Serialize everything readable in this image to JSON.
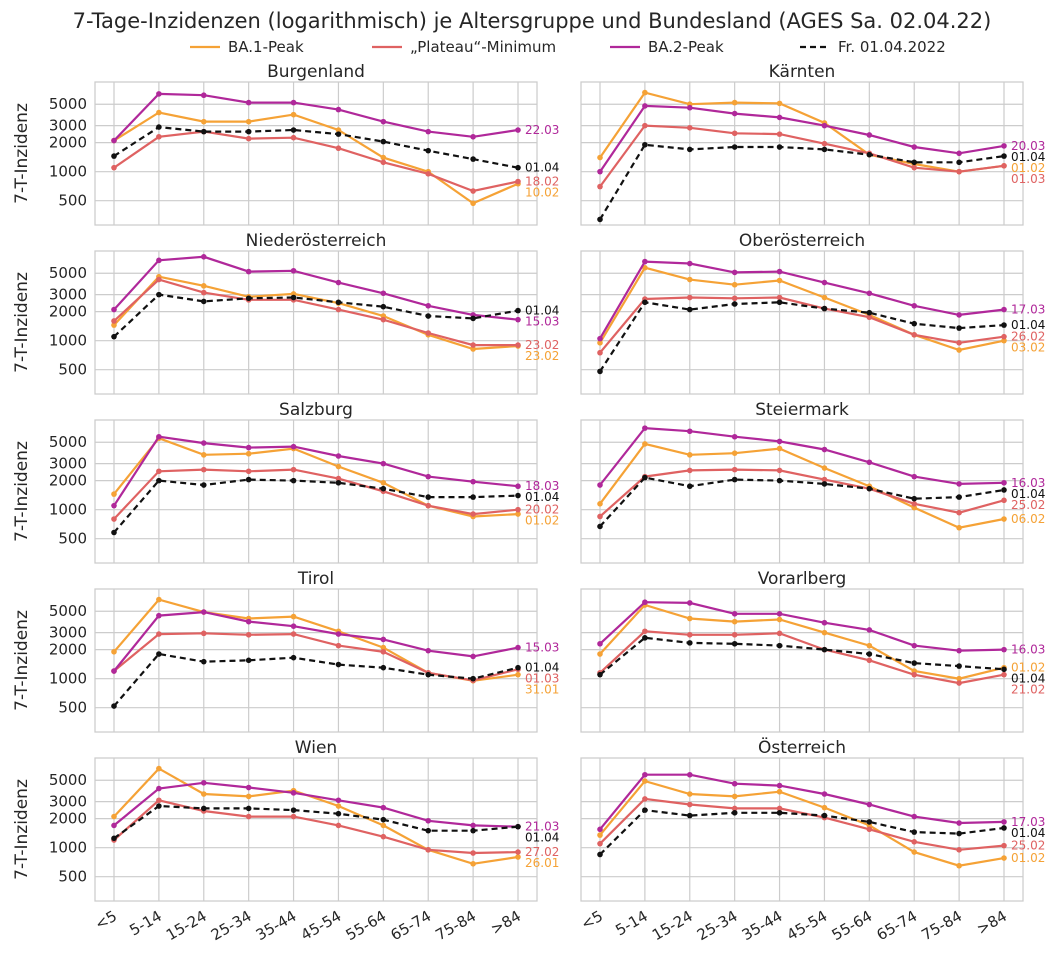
{
  "chart_data": {
    "type": "line",
    "title": "7-Tage-Inzidenzen (logarithmisch) je Altersgruppe und Bundesland (AGES Sa. 02.04.22)",
    "ylabel": "7-T-Inzidenz",
    "yscale": "log",
    "ylim": [
      280,
      8500
    ],
    "yticks": [
      500,
      1000,
      2000,
      3000,
      5000
    ],
    "categories": [
      "<5",
      "5-14",
      "15-24",
      "25-34",
      "35-44",
      "45-54",
      "55-64",
      "65-74",
      "75-84",
      ">84"
    ],
    "legend_position": "top-center",
    "grid": true,
    "legend": [
      {
        "key": "ba1",
        "label": "BA.1-Peak",
        "color": "#f5a236",
        "style": "solid"
      },
      {
        "key": "plateau",
        "label": "„Plateau“-Minimum",
        "color": "#df6262",
        "style": "solid"
      },
      {
        "key": "ba2",
        "label": "BA.2-Peak",
        "color": "#b0289a",
        "style": "solid"
      },
      {
        "key": "current",
        "label": "Fr. 01.04.2022",
        "color": "#111111",
        "style": "dashed"
      }
    ],
    "panels": [
      {
        "title": "Burgenland",
        "series": {
          "ba1": {
            "values": [
              2100,
              4100,
              3300,
              3300,
              3900,
              2700,
              1400,
              1000,
              470,
              750
            ],
            "label": "10.02"
          },
          "plateau": {
            "values": [
              1100,
              2300,
              2600,
              2200,
              2250,
              1750,
              1250,
              950,
              630,
              790
            ],
            "label": "18.02"
          },
          "ba2": {
            "values": [
              2100,
              6400,
              6200,
              5200,
              5200,
              4400,
              3300,
              2600,
              2300,
              2700
            ],
            "label": "22.03"
          },
          "current": {
            "values": [
              1450,
              2900,
              2600,
              2600,
              2700,
              2450,
              2050,
              1650,
              1350,
              1100
            ],
            "label": "01.04"
          }
        }
      },
      {
        "title": "Kärnten",
        "series": {
          "ba1": {
            "values": [
              1400,
              6600,
              5000,
              5200,
              5100,
              3200,
              1500,
              1200,
              1000,
              1150
            ],
            "label": "01.02"
          },
          "plateau": {
            "values": [
              700,
              3000,
              2850,
              2500,
              2450,
              1950,
              1550,
              1100,
              1000,
              1150
            ],
            "label": "01.03"
          },
          "ba2": {
            "values": [
              1000,
              4800,
              4600,
              4000,
              3650,
              3000,
              2400,
              1800,
              1550,
              1850
            ],
            "label": "20.03"
          },
          "current": {
            "values": [
              320,
              1900,
              1700,
              1800,
              1800,
              1700,
              1500,
              1250,
              1250,
              1450
            ],
            "label": "01.04"
          }
        }
      },
      {
        "title": "Niederösterreich",
        "series": {
          "ba1": {
            "values": [
              1450,
              4600,
              3700,
              2850,
              3050,
              2450,
              1800,
              1150,
              820,
              880
            ],
            "label": "23.02"
          },
          "plateau": {
            "values": [
              1600,
              4300,
              3150,
              2650,
              2650,
              2100,
              1650,
              1200,
              900,
              900
            ],
            "label": "23.02"
          },
          "ba2": {
            "values": [
              2100,
              6800,
              7400,
              5200,
              5300,
              4000,
              3100,
              2300,
              1850,
              1650
            ],
            "label": "15.03"
          },
          "current": {
            "values": [
              1100,
              3000,
              2550,
              2750,
              2800,
              2500,
              2250,
              1800,
              1700,
              2050
            ],
            "label": "01.04"
          }
        }
      },
      {
        "title": "Oberösterreich",
        "series": {
          "ba1": {
            "values": [
              950,
              5700,
              4300,
              3800,
              4200,
              2800,
              1850,
              1150,
              800,
              1000
            ],
            "label": "03.02"
          },
          "plateau": {
            "values": [
              750,
              2700,
              2800,
              2750,
              2800,
              2150,
              1750,
              1150,
              950,
              1100
            ],
            "label": "26.02"
          },
          "ba2": {
            "values": [
              1050,
              6600,
              6300,
              5100,
              5200,
              4000,
              3100,
              2300,
              1850,
              2100
            ],
            "label": "17.03"
          },
          "current": {
            "values": [
              480,
              2500,
              2100,
              2400,
              2500,
              2150,
              1950,
              1500,
              1350,
              1450
            ],
            "label": "01.04"
          }
        }
      },
      {
        "title": "Salzburg",
        "series": {
          "ba1": {
            "values": [
              1450,
              5500,
              3700,
              3800,
              4300,
              2800,
              1900,
              1100,
              850,
              900
            ],
            "label": "01.02"
          },
          "plateau": {
            "values": [
              800,
              2500,
              2600,
              2500,
              2600,
              2100,
              1550,
              1100,
              900,
              1000
            ],
            "label": "20.02"
          },
          "ba2": {
            "values": [
              1100,
              5700,
              4900,
              4400,
              4500,
              3600,
              3000,
              2200,
              1950,
              1750
            ],
            "label": "18.03"
          },
          "current": {
            "values": [
              580,
              2000,
              1800,
              2050,
              2000,
              1900,
              1650,
              1350,
              1350,
              1400
            ],
            "label": "01.04"
          }
        }
      },
      {
        "title": "Steiermark",
        "series": {
          "ba1": {
            "values": [
              1150,
              4800,
              3700,
              3850,
              4300,
              2700,
              1750,
              1050,
              650,
              800
            ],
            "label": "06.02"
          },
          "plateau": {
            "values": [
              850,
              2200,
              2550,
              2600,
              2550,
              2050,
              1650,
              1150,
              930,
              1250
            ],
            "label": "25.02"
          },
          "ba2": {
            "values": [
              1800,
              7000,
              6500,
              5700,
              5100,
              4200,
              3100,
              2200,
              1850,
              1900
            ],
            "label": "16.03"
          },
          "current": {
            "values": [
              670,
              2150,
              1750,
              2050,
              2000,
              1850,
              1650,
              1300,
              1350,
              1600
            ],
            "label": "01.04"
          }
        }
      },
      {
        "title": "Tirol",
        "series": {
          "ba1": {
            "values": [
              1900,
              6600,
              4900,
              4200,
              4400,
              3100,
              2100,
              1150,
              950,
              1100
            ],
            "label": "31.01"
          },
          "plateau": {
            "values": [
              1200,
              2900,
              2950,
              2850,
              2900,
              2200,
              1900,
              1150,
              960,
              1250
            ],
            "label": "01.03"
          },
          "ba2": {
            "values": [
              1200,
              4500,
              4900,
              3900,
              3500,
              2900,
              2550,
              1950,
              1700,
              2100
            ],
            "label": "15.03"
          },
          "current": {
            "values": [
              520,
              1800,
              1500,
              1550,
              1650,
              1400,
              1300,
              1100,
              1000,
              1300
            ],
            "label": "01.04"
          }
        }
      },
      {
        "title": "Vorarlberg",
        "series": {
          "ba1": {
            "values": [
              1800,
              5800,
              4200,
              3900,
              4100,
              3000,
              2200,
              1200,
              1000,
              1300
            ],
            "label": "01.02"
          },
          "plateau": {
            "values": [
              1150,
              3100,
              2850,
              2850,
              2950,
              2000,
              1550,
              1100,
              900,
              1100
            ],
            "label": "21.02"
          },
          "ba2": {
            "values": [
              2300,
              6200,
              6100,
              4700,
              4700,
              3800,
              3200,
              2200,
              1950,
              2000
            ],
            "label": "16.03"
          },
          "current": {
            "values": [
              1100,
              2650,
              2350,
              2300,
              2200,
              2000,
              1800,
              1450,
              1350,
              1250
            ],
            "label": "01.04"
          }
        }
      },
      {
        "title": "Wien",
        "series": {
          "ba1": {
            "values": [
              2100,
              6600,
              3600,
              3400,
              3900,
              2700,
              1700,
              950,
              680,
              800
            ],
            "label": "26.01"
          },
          "plateau": {
            "values": [
              1200,
              3100,
              2400,
              2100,
              2100,
              1700,
              1300,
              950,
              880,
              900
            ],
            "label": "27.02"
          },
          "ba2": {
            "values": [
              1700,
              4100,
              4700,
              4200,
              3700,
              3100,
              2600,
              1900,
              1700,
              1650
            ],
            "label": "21.03"
          },
          "current": {
            "values": [
              1250,
              2700,
              2550,
              2550,
              2450,
              2250,
              1950,
              1500,
              1500,
              1650
            ],
            "label": "01.04"
          }
        }
      },
      {
        "title": "Österreich",
        "series": {
          "ba1": {
            "values": [
              1350,
              4900,
              3600,
              3400,
              3800,
              2600,
              1700,
              900,
              650,
              780
            ],
            "label": "01.02"
          },
          "plateau": {
            "values": [
              1100,
              3200,
              2800,
              2550,
              2550,
              2050,
              1550,
              1150,
              950,
              1050
            ],
            "label": "25.02"
          },
          "ba2": {
            "values": [
              1550,
              5700,
              5700,
              4600,
              4400,
              3600,
              2800,
              2100,
              1800,
              1850
            ],
            "label": "17.03"
          },
          "current": {
            "values": [
              850,
              2450,
              2150,
              2300,
              2300,
              2150,
              1850,
              1450,
              1400,
              1600
            ],
            "label": "01.04"
          }
        }
      }
    ]
  }
}
